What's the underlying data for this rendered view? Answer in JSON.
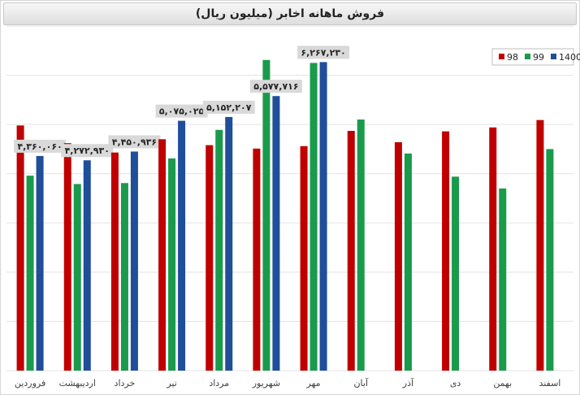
{
  "chart_data": {
    "type": "bar",
    "title": "فروش ماهانه اخابر (میلیون ریال)",
    "xlabel": "",
    "ylabel": "",
    "ylim": [
      0,
      7000
    ],
    "grid": true,
    "legend": "top-right",
    "categories": [
      "فروردین",
      "اردیبهشت",
      "خرداد",
      "تیر",
      "مرداد",
      "شهریور",
      "مهر",
      "آبان",
      "آذر",
      "دی",
      "بهمن",
      "اسفند"
    ],
    "series": [
      {
        "name": "98",
        "color": "#c00000",
        "values": [
          4980,
          4620,
          4430,
          4700,
          4580,
          4510,
          4560,
          4870,
          4640,
          4860,
          4940,
          5090
        ]
      },
      {
        "name": "99",
        "color": "#1a9a4b",
        "values": [
          3960,
          3790,
          3810,
          4310,
          4890,
          6310,
          6250,
          5100,
          4410,
          3940,
          3700,
          4500
        ]
      },
      {
        "name": "1400",
        "color": "#1f4e9a",
        "values": [
          4360,
          4272,
          4450,
          5075,
          5152,
          5577,
          6267,
          null,
          null,
          null,
          null,
          null
        ]
      }
    ],
    "data_labels": [
      "۴,۳۶۰,۰۶۰",
      "۴,۲۷۲,۹۳۰",
      "۴,۴۵۰,۹۳۶",
      "۵,۰۷۵,۰۲۵",
      "۵,۱۵۲,۲۰۷",
      "۵,۵۷۷,۷۱۶",
      "۶,۲۶۷,۲۳۰"
    ]
  }
}
